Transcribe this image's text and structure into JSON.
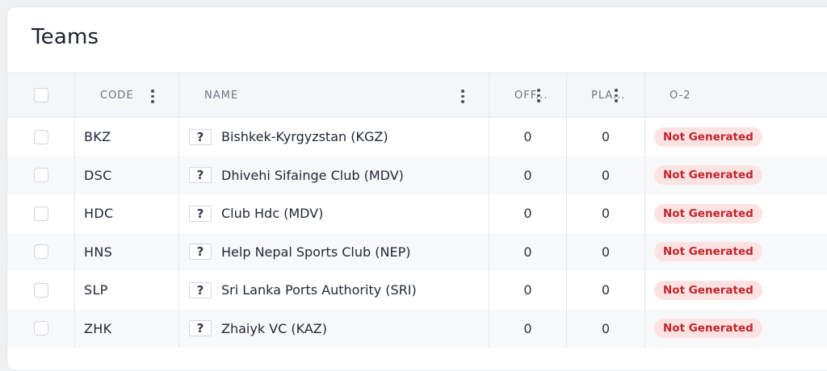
{
  "panel": {
    "title": "Teams"
  },
  "table": {
    "columns": [
      {
        "key": "code",
        "label": "CODE"
      },
      {
        "key": "name",
        "label": "NAME"
      },
      {
        "key": "off",
        "label": "OFF..."
      },
      {
        "key": "pla",
        "label": "PLA..."
      },
      {
        "key": "o2",
        "label": "O-2"
      }
    ],
    "rows": [
      {
        "code": "BKZ",
        "flag": "?",
        "name": "Bishkek-Kyrgyzstan (KGZ)",
        "off": "0",
        "pla": "0",
        "status": "Not Generated"
      },
      {
        "code": "DSC",
        "flag": "?",
        "name": "Dhivehi Sifainge Club (MDV)",
        "off": "0",
        "pla": "0",
        "status": "Not Generated"
      },
      {
        "code": "HDC",
        "flag": "?",
        "name": "Club Hdc (MDV)",
        "off": "0",
        "pla": "0",
        "status": "Not Generated"
      },
      {
        "code": "HNS",
        "flag": "?",
        "name": "Help Nepal Sports Club (NEP)",
        "off": "0",
        "pla": "0",
        "status": "Not Generated"
      },
      {
        "code": "SLP",
        "flag": "?",
        "name": "Sri Lanka Ports Authority (SRI)",
        "off": "0",
        "pla": "0",
        "status": "Not Generated"
      },
      {
        "code": "ZHK",
        "flag": "?",
        "name": "Zhaiyk VC (KAZ)",
        "off": "0",
        "pla": "0",
        "status": "Not Generated"
      }
    ]
  },
  "colors": {
    "badge_bg": "#fde2e2",
    "badge_text": "#c0262d",
    "header_bg": "#f5f6f8",
    "alt_row_bg": "#f7f8fa"
  }
}
